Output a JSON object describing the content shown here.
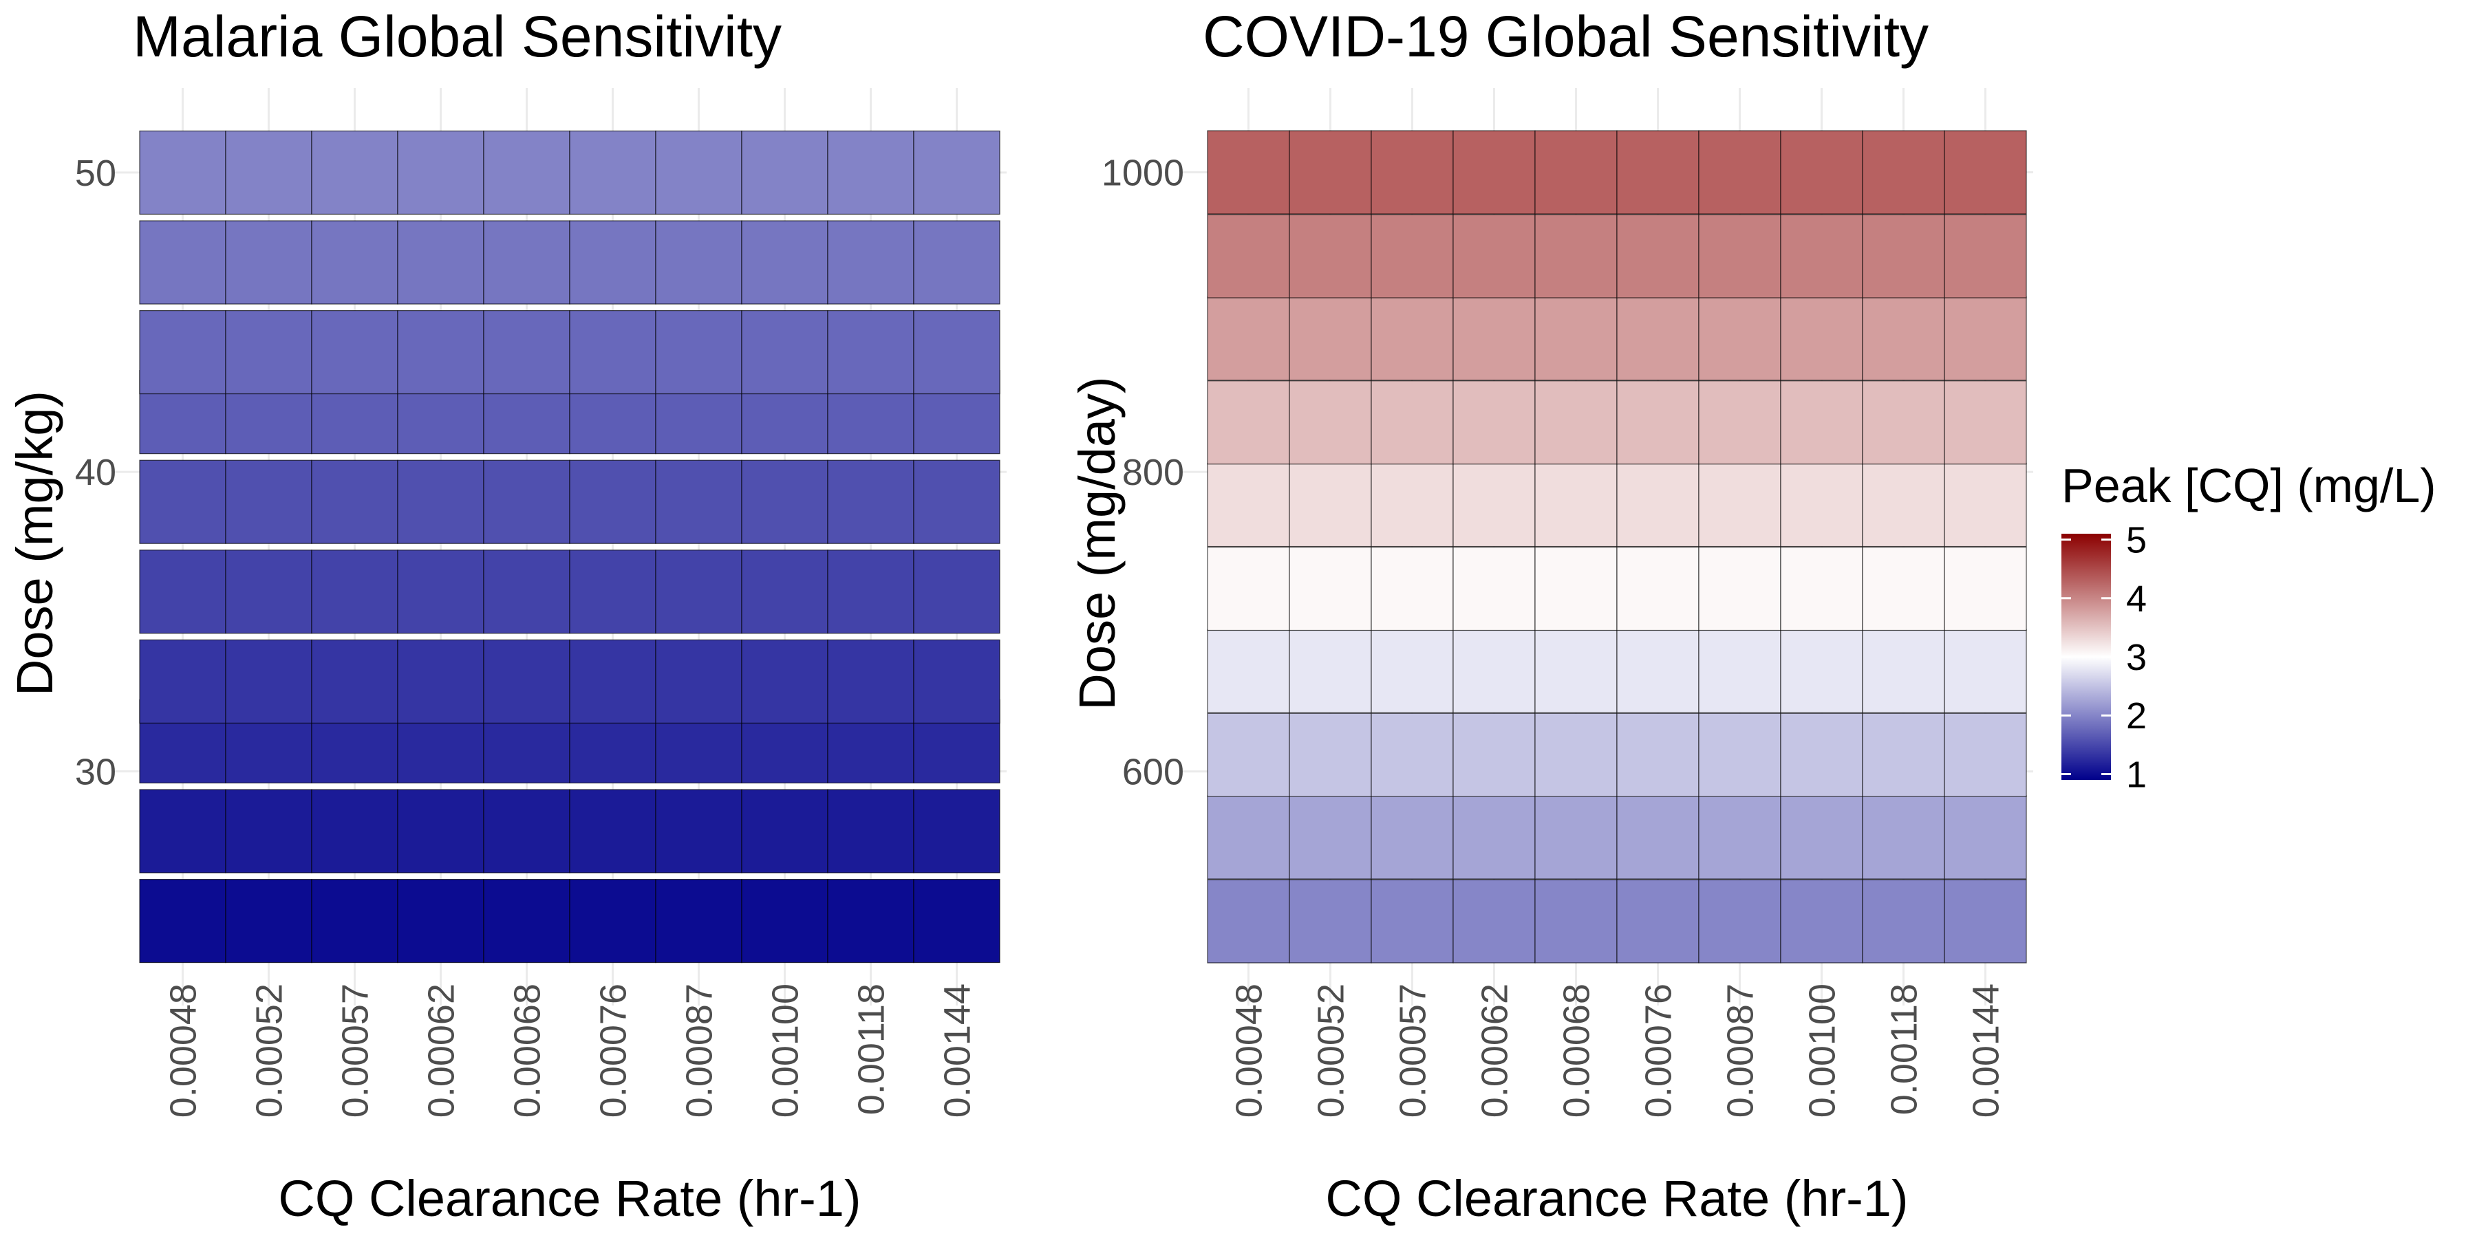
{
  "chart_data": [
    {
      "type": "heatmap",
      "title": "Malaria Global Sensitivity",
      "xlabel": "CQ Clearance Rate (hr-1)",
      "ylabel": "Dose (mg/kg)",
      "x_categories": [
        "0.00048",
        "0.00052",
        "0.00057",
        "0.00062",
        "0.00068",
        "0.00076",
        "0.00087",
        "0.00100",
        "0.00118",
        "0.00144"
      ],
      "y_values": [
        25,
        28,
        31,
        33,
        36,
        39,
        42,
        44,
        47,
        50
      ],
      "y_ticks": [
        30,
        40,
        50
      ],
      "ylim": [
        23.6,
        51.4
      ],
      "values": [
        [
          1.0,
          1.0,
          1.0,
          1.0,
          1.0,
          1.0,
          1.0,
          1.0,
          1.0,
          1.0
        ],
        [
          1.12,
          1.12,
          1.12,
          1.12,
          1.12,
          1.12,
          1.12,
          1.12,
          1.12,
          1.12
        ],
        [
          1.24,
          1.24,
          1.24,
          1.24,
          1.24,
          1.24,
          1.24,
          1.24,
          1.24,
          1.24
        ],
        [
          1.34,
          1.34,
          1.34,
          1.34,
          1.34,
          1.34,
          1.34,
          1.34,
          1.34,
          1.34
        ],
        [
          1.45,
          1.45,
          1.45,
          1.45,
          1.45,
          1.45,
          1.45,
          1.45,
          1.45,
          1.45
        ],
        [
          1.56,
          1.56,
          1.56,
          1.56,
          1.56,
          1.56,
          1.56,
          1.56,
          1.56,
          1.56
        ],
        [
          1.67,
          1.67,
          1.67,
          1.67,
          1.67,
          1.67,
          1.67,
          1.67,
          1.67,
          1.67
        ],
        [
          1.76,
          1.76,
          1.76,
          1.76,
          1.76,
          1.76,
          1.76,
          1.76,
          1.76,
          1.76
        ],
        [
          1.87,
          1.87,
          1.87,
          1.87,
          1.87,
          1.87,
          1.87,
          1.87,
          1.87,
          1.87
        ],
        [
          1.98,
          1.98,
          1.98,
          1.98,
          1.98,
          1.98,
          1.98,
          1.98,
          1.98,
          1.98
        ]
      ]
    },
    {
      "type": "heatmap",
      "title": "COVID-19 Global Sensitivity",
      "xlabel": "CQ Clearance Rate (hr-1)",
      "ylabel": "Dose (mg/day)",
      "x_categories": [
        "0.00048",
        "0.00052",
        "0.00057",
        "0.00062",
        "0.00068",
        "0.00076",
        "0.00087",
        "0.00100",
        "0.00118",
        "0.00144"
      ],
      "y_values": [
        500,
        556,
        611,
        667,
        722,
        778,
        833,
        889,
        944,
        1000
      ],
      "y_ticks": [
        600,
        800,
        1000
      ],
      "ylim": [
        472.2,
        1027.8
      ],
      "values": [
        [
          2.0,
          2.0,
          2.0,
          2.0,
          2.0,
          2.0,
          2.0,
          2.0,
          2.0,
          2.0
        ],
        [
          2.26,
          2.26,
          2.26,
          2.26,
          2.26,
          2.26,
          2.26,
          2.26,
          2.26,
          2.26
        ],
        [
          2.52,
          2.52,
          2.52,
          2.52,
          2.52,
          2.52,
          2.52,
          2.52,
          2.52,
          2.52
        ],
        [
          2.8,
          2.8,
          2.8,
          2.8,
          2.8,
          2.8,
          2.8,
          2.8,
          2.8,
          2.8
        ],
        [
          3.06,
          3.06,
          3.06,
          3.06,
          3.06,
          3.06,
          3.06,
          3.06,
          3.06,
          3.06
        ],
        [
          3.28,
          3.28,
          3.28,
          3.28,
          3.28,
          3.28,
          3.28,
          3.28,
          3.28,
          3.28
        ],
        [
          3.54,
          3.54,
          3.54,
          3.54,
          3.54,
          3.54,
          3.54,
          3.54,
          3.54,
          3.54
        ],
        [
          3.8,
          3.8,
          3.8,
          3.8,
          3.8,
          3.8,
          3.8,
          3.8,
          3.8,
          3.8
        ],
        [
          4.05,
          4.05,
          4.05,
          4.05,
          4.05,
          4.05,
          4.05,
          4.05,
          4.05,
          4.05
        ],
        [
          4.3,
          4.3,
          4.3,
          4.3,
          4.3,
          4.3,
          4.3,
          4.3,
          4.3,
          4.3
        ]
      ]
    }
  ],
  "legend": {
    "title": "Peak [CQ] (mg/L)",
    "min": 0.9,
    "max": 5.1,
    "ticks": [
      1,
      2,
      3,
      4,
      5
    ],
    "color_low": "#00008B",
    "color_mid": "#FFFFFF",
    "color_high": "#8B0000",
    "midpoint": 3
  },
  "colors": {
    "grid": "#ebebeb",
    "tile_border": "#000000",
    "axis_text": "#4d4d4d",
    "title_text": "#000000"
  }
}
